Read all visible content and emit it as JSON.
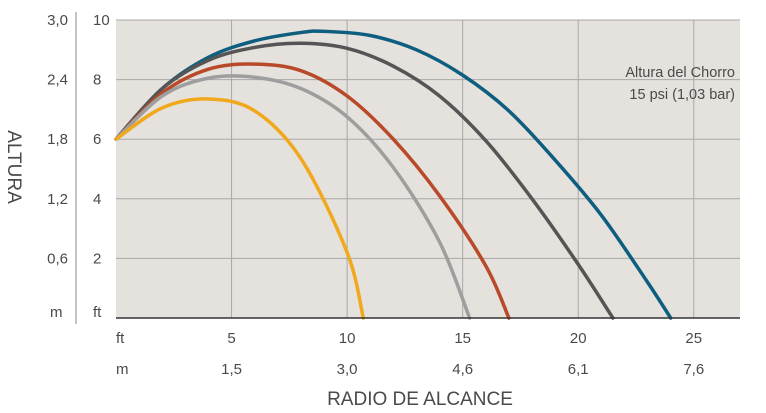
{
  "chart_data": {
    "type": "line",
    "title": "",
    "xlabel": "RADIO DE ALCANCE",
    "ylabel": "ALTURA",
    "xlim": [
      0,
      27
    ],
    "ylim": [
      0,
      10
    ],
    "x_ticks_ft": {
      "unit": "ft",
      "labels": [
        "5",
        "10",
        "15",
        "20",
        "25"
      ],
      "values": [
        5,
        10,
        15,
        20,
        25
      ]
    },
    "x_ticks_m": {
      "unit": "m",
      "labels": [
        "1,5",
        "3,0",
        "4,6",
        "6,1",
        "7,6"
      ],
      "values": [
        5,
        10,
        15,
        20,
        25
      ]
    },
    "y_ticks_ft": {
      "unit": "ft",
      "labels": [
        "2",
        "4",
        "6",
        "8",
        "10"
      ],
      "values": [
        2,
        4,
        6,
        8,
        10
      ]
    },
    "y_ticks_m": {
      "unit": "m",
      "labels": [
        "0,6",
        "1,2",
        "1,8",
        "2,4",
        "3,0"
      ],
      "values": [
        2,
        4,
        6,
        8,
        10
      ]
    },
    "grid": true,
    "annotation": [
      "Altura del Chorro",
      "15 psi (1,03 bar)"
    ],
    "series": [
      {
        "color": "#0e5e7f",
        "x": [
          0,
          2,
          4,
          6,
          8,
          9,
          11,
          13,
          15,
          17,
          19,
          21,
          23,
          24
        ],
        "y": [
          6.0,
          7.7,
          8.75,
          9.3,
          9.58,
          9.62,
          9.48,
          9.0,
          8.15,
          6.95,
          5.3,
          3.45,
          1.2,
          0
        ]
      },
      {
        "color": "#555555",
        "x": [
          0,
          2,
          4,
          6,
          8,
          10,
          12,
          14,
          16,
          18,
          20,
          21.5
        ],
        "y": [
          6.0,
          7.7,
          8.65,
          9.08,
          9.22,
          9.05,
          8.45,
          7.45,
          5.95,
          4.0,
          1.8,
          0
        ]
      },
      {
        "color": "#b84a2a",
        "x": [
          0,
          2,
          4,
          6,
          8,
          10,
          12,
          14,
          16,
          17
        ],
        "y": [
          6.0,
          7.55,
          8.35,
          8.52,
          8.3,
          7.45,
          6.0,
          4.1,
          1.75,
          0
        ]
      },
      {
        "color": "#9e9e9e",
        "x": [
          0,
          2,
          4,
          6,
          8,
          10,
          12,
          14,
          15.3
        ],
        "y": [
          6.0,
          7.45,
          8.05,
          8.08,
          7.7,
          6.75,
          5.05,
          2.55,
          0
        ]
      },
      {
        "color": "#f0a81c",
        "x": [
          0,
          2,
          4,
          6,
          8,
          10,
          10.7
        ],
        "y": [
          6.0,
          7.05,
          7.35,
          6.95,
          5.35,
          2.2,
          0
        ]
      }
    ]
  }
}
